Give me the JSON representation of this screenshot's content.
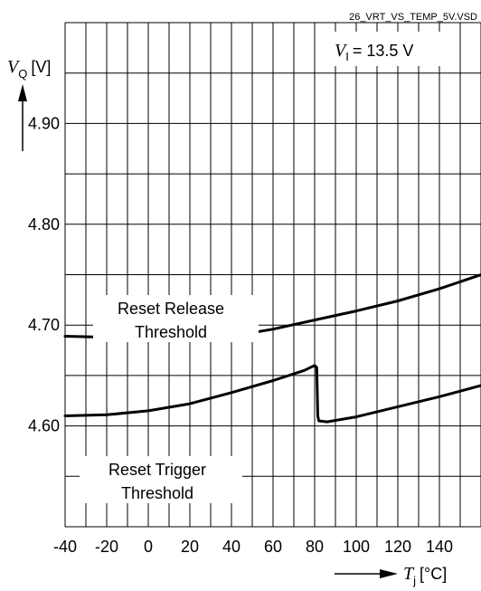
{
  "file_label": "26_VRT_VS_TEMP_5V.VSD",
  "condition": {
    "var": "V",
    "sub": "I",
    "value": "= 13.5 V"
  },
  "chart_data": {
    "type": "line",
    "y_axis": {
      "var": "V",
      "sub": "Q",
      "unit": "[V]",
      "ticks": [
        "4.90",
        "4.80",
        "4.70",
        "4.60"
      ],
      "range": [
        4.5,
        5.0
      ]
    },
    "x_axis": {
      "var": "T",
      "sub": "j",
      "unit": "[°C]",
      "ticks": [
        "-40",
        "-20",
        "0",
        "20",
        "40",
        "60",
        "80",
        "100",
        "120",
        "140"
      ],
      "range": [
        -40,
        160
      ]
    },
    "grid": true,
    "series": [
      {
        "name": "Reset Release Threshold",
        "label_lines": [
          "Reset Release",
          "Threshold"
        ],
        "points": [
          [
            -40,
            4.689
          ],
          [
            -20,
            4.688
          ],
          [
            0,
            4.687
          ],
          [
            20,
            4.686
          ],
          [
            40,
            4.689
          ],
          [
            60,
            4.696
          ],
          [
            80,
            4.705
          ],
          [
            100,
            4.714
          ],
          [
            120,
            4.724
          ],
          [
            140,
            4.736
          ],
          [
            160,
            4.75
          ]
        ]
      },
      {
        "name": "Reset Trigger Threshold",
        "label_lines": [
          "Reset Trigger",
          "Threshold"
        ],
        "points": [
          [
            -40,
            4.61
          ],
          [
            -20,
            4.611
          ],
          [
            0,
            4.615
          ],
          [
            20,
            4.622
          ],
          [
            40,
            4.633
          ],
          [
            60,
            4.645
          ],
          [
            75,
            4.655
          ],
          [
            80,
            4.66
          ],
          [
            81,
            4.658
          ],
          [
            81.5,
            4.61
          ],
          [
            82,
            4.605
          ],
          [
            86,
            4.604
          ],
          [
            100,
            4.609
          ],
          [
            120,
            4.619
          ],
          [
            140,
            4.629
          ],
          [
            160,
            4.64
          ]
        ]
      }
    ]
  }
}
